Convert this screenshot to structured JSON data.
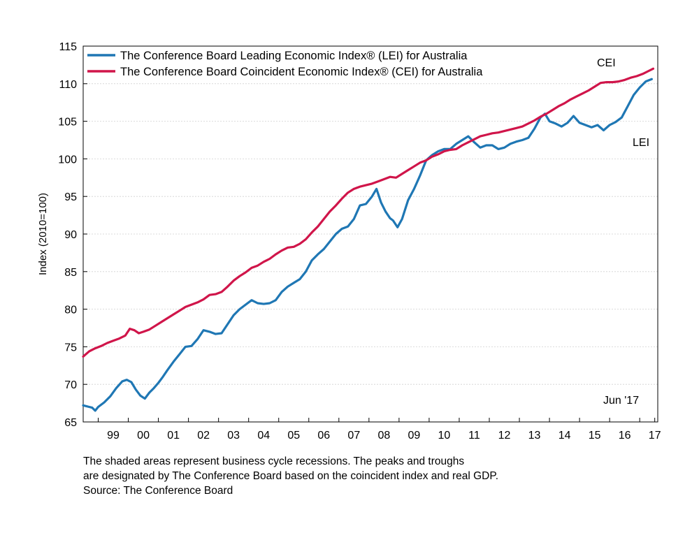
{
  "chart_data": {
    "type": "line",
    "ylabel": "Index (2010=100)",
    "xlabel": "",
    "ylim": [
      65,
      115
    ],
    "xlim": [
      1998.5,
      2017.6
    ],
    "yticks": [
      65,
      70,
      75,
      80,
      85,
      90,
      95,
      100,
      105,
      110,
      115
    ],
    "xtick_labels": [
      "99",
      "00",
      "01",
      "02",
      "03",
      "04",
      "05",
      "06",
      "07",
      "08",
      "09",
      "10",
      "11",
      "12",
      "13",
      "14",
      "15",
      "16",
      "17"
    ],
    "grid": true,
    "legend_position": "top-left",
    "series": [
      {
        "name": "The Conference Board Leading Economic Index® (LEI) for Australia",
        "short_label": "LEI",
        "color": "#1f77b4",
        "x": [
          1998.5,
          1998.7,
          1998.8,
          1998.9,
          1999.0,
          1999.2,
          1999.4,
          1999.6,
          1999.8,
          1999.95,
          2000.1,
          2000.25,
          2000.4,
          2000.55,
          2000.7,
          2000.85,
          2001.0,
          2001.15,
          2001.3,
          2001.5,
          2001.7,
          2001.9,
          2002.1,
          2002.3,
          2002.5,
          2002.7,
          2002.9,
          2003.1,
          2003.3,
          2003.5,
          2003.7,
          2003.9,
          2004.1,
          2004.3,
          2004.5,
          2004.7,
          2004.9,
          2005.1,
          2005.3,
          2005.5,
          2005.7,
          2005.9,
          2006.1,
          2006.3,
          2006.5,
          2006.7,
          2006.9,
          2007.1,
          2007.3,
          2007.5,
          2007.7,
          2007.9,
          2008.1,
          2008.25,
          2008.4,
          2008.55,
          2008.7,
          2008.8,
          2008.95,
          2009.1,
          2009.3,
          2009.5,
          2009.7,
          2009.9,
          2010.1,
          2010.3,
          2010.5,
          2010.7,
          2010.9,
          2011.1,
          2011.3,
          2011.5,
          2011.7,
          2011.9,
          2012.1,
          2012.3,
          2012.5,
          2012.7,
          2012.9,
          2013.1,
          2013.3,
          2013.5,
          2013.7,
          2013.85,
          2014.0,
          2014.2,
          2014.4,
          2014.6,
          2014.8,
          2015.0,
          2015.2,
          2015.4,
          2015.6,
          2015.8,
          2016.0,
          2016.2,
          2016.4,
          2016.6,
          2016.8,
          2017.0,
          2017.2,
          2017.4
        ],
        "values": [
          67.2,
          67.0,
          66.9,
          66.5,
          67.0,
          67.6,
          68.4,
          69.5,
          70.4,
          70.6,
          70.3,
          69.3,
          68.5,
          68.1,
          68.9,
          69.5,
          70.2,
          71.0,
          71.9,
          73.0,
          74.0,
          75.0,
          75.1,
          76.0,
          77.2,
          77.0,
          76.7,
          76.8,
          78.0,
          79.2,
          80.0,
          80.6,
          81.2,
          80.8,
          80.7,
          80.8,
          81.2,
          82.3,
          83.0,
          83.5,
          84.0,
          85.0,
          86.5,
          87.3,
          88.0,
          89.0,
          90.0,
          90.7,
          91.0,
          92.0,
          93.8,
          94.0,
          95.0,
          96.0,
          94.2,
          93.0,
          92.1,
          91.8,
          90.9,
          92.0,
          94.5,
          96.0,
          97.8,
          99.8,
          100.5,
          101.0,
          101.3,
          101.3,
          102.0,
          102.5,
          103.0,
          102.2,
          101.5,
          101.8,
          101.8,
          101.3,
          101.5,
          102.0,
          102.3,
          102.5,
          102.8,
          104.0,
          105.5,
          106.0,
          105.0,
          104.7,
          104.3,
          104.8,
          105.7,
          104.8,
          104.5,
          104.2,
          104.5,
          103.8,
          104.5,
          104.9,
          105.5,
          107.0,
          108.5,
          109.5,
          110.3,
          110.6
        ],
        "end_label": "LEI"
      },
      {
        "name": "The Conference Board Coincident Economic Index® (CEI) for Australia",
        "short_label": "CEI",
        "color": "#d0154a",
        "x": [
          1998.5,
          1998.7,
          1998.9,
          1999.1,
          1999.3,
          1999.5,
          1999.7,
          1999.9,
          2000.05,
          2000.2,
          2000.35,
          2000.5,
          2000.7,
          2000.9,
          2001.1,
          2001.3,
          2001.5,
          2001.7,
          2001.9,
          2002.1,
          2002.3,
          2002.5,
          2002.7,
          2002.9,
          2003.1,
          2003.3,
          2003.5,
          2003.7,
          2003.9,
          2004.1,
          2004.3,
          2004.5,
          2004.7,
          2004.9,
          2005.1,
          2005.3,
          2005.5,
          2005.7,
          2005.9,
          2006.1,
          2006.3,
          2006.5,
          2006.7,
          2006.9,
          2007.1,
          2007.3,
          2007.5,
          2007.7,
          2007.9,
          2008.1,
          2008.3,
          2008.5,
          2008.7,
          2008.9,
          2009.1,
          2009.3,
          2009.5,
          2009.7,
          2009.9,
          2010.1,
          2010.3,
          2010.5,
          2010.7,
          2010.9,
          2011.1,
          2011.3,
          2011.5,
          2011.7,
          2011.9,
          2012.1,
          2012.3,
          2012.5,
          2012.7,
          2012.9,
          2013.1,
          2013.3,
          2013.5,
          2013.7,
          2013.9,
          2014.1,
          2014.3,
          2014.5,
          2014.7,
          2014.9,
          2015.1,
          2015.3,
          2015.5,
          2015.7,
          2015.9,
          2016.1,
          2016.3,
          2016.5,
          2016.7,
          2016.9,
          2017.1,
          2017.3,
          2017.45
        ],
        "values": [
          73.7,
          74.4,
          74.8,
          75.1,
          75.5,
          75.8,
          76.1,
          76.5,
          77.4,
          77.2,
          76.8,
          77.0,
          77.3,
          77.8,
          78.3,
          78.8,
          79.3,
          79.8,
          80.3,
          80.6,
          80.9,
          81.3,
          81.9,
          82.0,
          82.3,
          83.0,
          83.8,
          84.4,
          84.9,
          85.5,
          85.8,
          86.3,
          86.7,
          87.3,
          87.8,
          88.2,
          88.3,
          88.7,
          89.3,
          90.2,
          91.0,
          92.0,
          93.0,
          93.8,
          94.7,
          95.5,
          96.0,
          96.3,
          96.5,
          96.7,
          97.0,
          97.3,
          97.6,
          97.5,
          98.0,
          98.5,
          99.0,
          99.5,
          99.8,
          100.3,
          100.6,
          101.0,
          101.2,
          101.3,
          101.8,
          102.2,
          102.6,
          103.0,
          103.2,
          103.4,
          103.5,
          103.7,
          103.9,
          104.1,
          104.3,
          104.7,
          105.1,
          105.6,
          106.0,
          106.5,
          107.0,
          107.4,
          107.9,
          108.3,
          108.7,
          109.1,
          109.6,
          110.1,
          110.2,
          110.2,
          110.3,
          110.5,
          110.8,
          111.0,
          111.3,
          111.7,
          112.0
        ],
        "end_label": "CEI"
      }
    ],
    "annotations": {
      "date_label": "Jun '17"
    }
  },
  "footnote": {
    "line1": "The shaded areas represent business cycle recessions. The peaks and troughs",
    "line2": "are designated by The Conference Board based on the coincident index and real GDP.",
    "line3": "Source: The Conference Board"
  }
}
